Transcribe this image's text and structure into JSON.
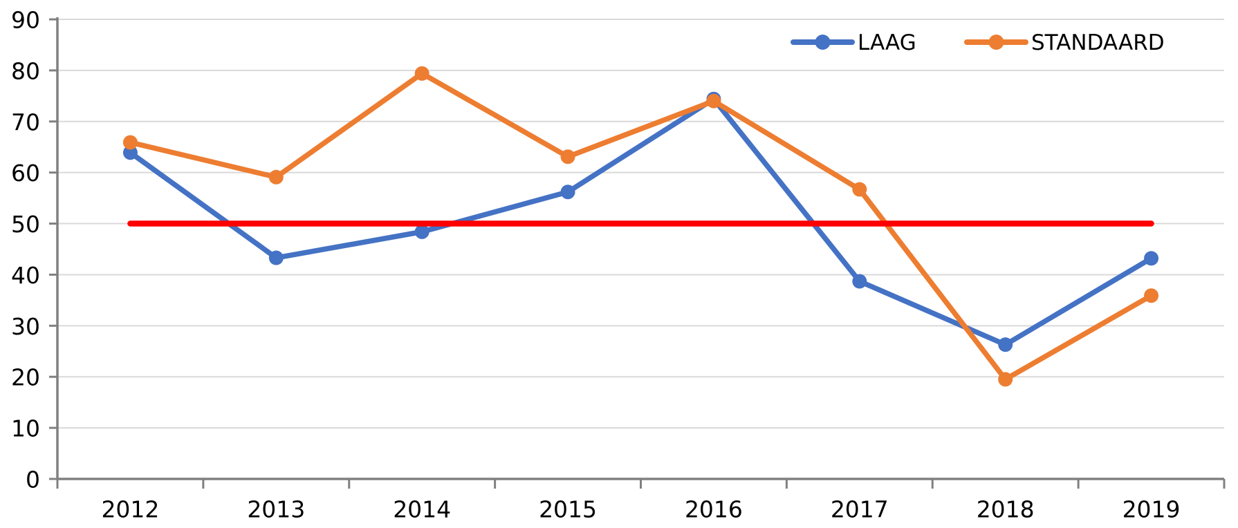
{
  "chart_data": {
    "type": "line",
    "title": "",
    "xlabel": "",
    "ylabel": "",
    "categories": [
      "2012",
      "2013",
      "2014",
      "2015",
      "2016",
      "2017",
      "2018",
      "2019"
    ],
    "series": [
      {
        "name": "LAAG",
        "color": "#4472C4",
        "values": [
          63.9,
          43.3,
          48.4,
          56.2,
          74.4,
          38.7,
          26.3,
          43.2
        ]
      },
      {
        "name": "STANDAARD",
        "color": "#ED7D31",
        "values": [
          65.9,
          59.1,
          79.4,
          63.1,
          74.0,
          56.7,
          19.5,
          35.9
        ]
      }
    ],
    "reference_line": {
      "value": 50,
      "color": "#FF0000"
    },
    "ylim": [
      0,
      90
    ],
    "yticks": [
      0,
      10,
      20,
      30,
      40,
      50,
      60,
      70,
      80,
      90
    ],
    "grid": "horizontal",
    "gridline_color": "#D9D9D9",
    "axis_color": "#808080",
    "legend_position": "top-right",
    "marker": "circle"
  }
}
